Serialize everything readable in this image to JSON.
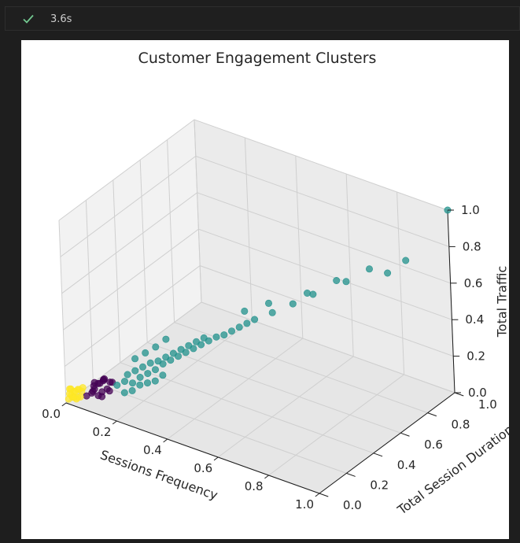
{
  "status": {
    "icon": "check-icon",
    "elapsed": "3.6s",
    "check_color": "#73c991"
  },
  "chart_data": {
    "type": "scatter",
    "projection": "3d",
    "title": "Customer Engagement Clusters",
    "xlabel": "Sessions Frequency",
    "ylabel": "Total Session Duration",
    "zlabel": "Total Traffic",
    "xlim": [
      0,
      1
    ],
    "ylim": [
      0,
      1
    ],
    "zlim": [
      0,
      1
    ],
    "xticks": [
      "0.0",
      "0.2",
      "0.4",
      "0.6",
      "0.8",
      "1.0"
    ],
    "yticks": [
      "0.0",
      "0.2",
      "0.4",
      "0.6",
      "0.8",
      "1.0"
    ],
    "zticks": [
      "0.0",
      "0.2",
      "0.4",
      "0.6",
      "0.8",
      "1.0"
    ],
    "grid": true,
    "colormap": "viridis",
    "series": [
      {
        "color": "#fde725",
        "points": [
          [
            0.0,
            0.02,
            0.01
          ],
          [
            0.01,
            0.03,
            0.02
          ],
          [
            0.02,
            0.02,
            0.03
          ],
          [
            0.0,
            0.04,
            0.02
          ],
          [
            0.01,
            0.05,
            0.04
          ],
          [
            0.02,
            0.04,
            0.01
          ],
          [
            0.03,
            0.03,
            0.03
          ],
          [
            0.01,
            0.01,
            0.05
          ],
          [
            0.0,
            0.06,
            0.03
          ],
          [
            0.02,
            0.06,
            0.05
          ],
          [
            0.03,
            0.05,
            0.02
          ],
          [
            0.01,
            0.07,
            0.04
          ],
          [
            0.02,
            0.08,
            0.03
          ],
          [
            0.0,
            0.03,
            0.06
          ],
          [
            0.03,
            0.07,
            0.06
          ],
          [
            0.01,
            0.02,
            0.07
          ]
        ]
      },
      {
        "color": "#440154",
        "points": [
          [
            0.05,
            0.06,
            0.03
          ],
          [
            0.06,
            0.08,
            0.04
          ],
          [
            0.07,
            0.07,
            0.06
          ],
          [
            0.06,
            0.1,
            0.05
          ],
          [
            0.08,
            0.09,
            0.03
          ],
          [
            0.05,
            0.12,
            0.07
          ],
          [
            0.07,
            0.11,
            0.08
          ],
          [
            0.09,
            0.1,
            0.05
          ],
          [
            0.06,
            0.14,
            0.06
          ],
          [
            0.08,
            0.13,
            0.09
          ],
          [
            0.1,
            0.12,
            0.06
          ],
          [
            0.07,
            0.15,
            0.08
          ],
          [
            0.09,
            0.16,
            0.07
          ],
          [
            0.11,
            0.14,
            0.09
          ],
          [
            0.08,
            0.06,
            0.1
          ],
          [
            0.1,
            0.08,
            0.04
          ],
          [
            0.12,
            0.1,
            0.07
          ],
          [
            0.09,
            0.12,
            0.11
          ]
        ]
      },
      {
        "color": "#21918c",
        "points": [
          [
            0.14,
            0.12,
            0.1
          ],
          [
            0.16,
            0.14,
            0.12
          ],
          [
            0.15,
            0.18,
            0.13
          ],
          [
            0.18,
            0.16,
            0.11
          ],
          [
            0.17,
            0.2,
            0.15
          ],
          [
            0.2,
            0.18,
            0.14
          ],
          [
            0.19,
            0.22,
            0.17
          ],
          [
            0.22,
            0.2,
            0.16
          ],
          [
            0.21,
            0.24,
            0.19
          ],
          [
            0.24,
            0.22,
            0.18
          ],
          [
            0.23,
            0.26,
            0.2
          ],
          [
            0.26,
            0.24,
            0.21
          ],
          [
            0.25,
            0.28,
            0.22
          ],
          [
            0.28,
            0.26,
            0.23
          ],
          [
            0.27,
            0.3,
            0.24
          ],
          [
            0.3,
            0.28,
            0.25
          ],
          [
            0.29,
            0.32,
            0.26
          ],
          [
            0.32,
            0.3,
            0.27
          ],
          [
            0.31,
            0.34,
            0.28
          ],
          [
            0.34,
            0.32,
            0.29
          ],
          [
            0.33,
            0.36,
            0.3
          ],
          [
            0.36,
            0.34,
            0.31
          ],
          [
            0.35,
            0.38,
            0.32
          ],
          [
            0.38,
            0.36,
            0.33
          ],
          [
            0.18,
            0.1,
            0.09
          ],
          [
            0.2,
            0.12,
            0.1
          ],
          [
            0.22,
            0.14,
            0.13
          ],
          [
            0.24,
            0.16,
            0.14
          ],
          [
            0.26,
            0.18,
            0.15
          ],
          [
            0.28,
            0.2,
            0.18
          ],
          [
            0.16,
            0.22,
            0.2
          ],
          [
            0.18,
            0.26,
            0.22
          ],
          [
            0.2,
            0.3,
            0.24
          ],
          [
            0.22,
            0.34,
            0.27
          ],
          [
            0.4,
            0.38,
            0.35
          ],
          [
            0.42,
            0.4,
            0.36
          ],
          [
            0.44,
            0.42,
            0.38
          ],
          [
            0.46,
            0.44,
            0.4
          ],
          [
            0.48,
            0.46,
            0.42
          ],
          [
            0.5,
            0.48,
            0.44
          ],
          [
            0.45,
            0.5,
            0.45
          ],
          [
            0.52,
            0.55,
            0.5
          ],
          [
            0.55,
            0.52,
            0.48
          ],
          [
            0.6,
            0.58,
            0.52
          ],
          [
            0.62,
            0.65,
            0.55
          ],
          [
            0.66,
            0.62,
            0.58
          ],
          [
            0.7,
            0.72,
            0.62
          ],
          [
            0.75,
            0.7,
            0.65
          ],
          [
            0.8,
            0.78,
            0.7
          ],
          [
            0.85,
            0.82,
            0.68
          ],
          [
            0.88,
            0.9,
            0.72
          ],
          [
            1.0,
            1.0,
            1.0
          ]
        ]
      }
    ]
  }
}
